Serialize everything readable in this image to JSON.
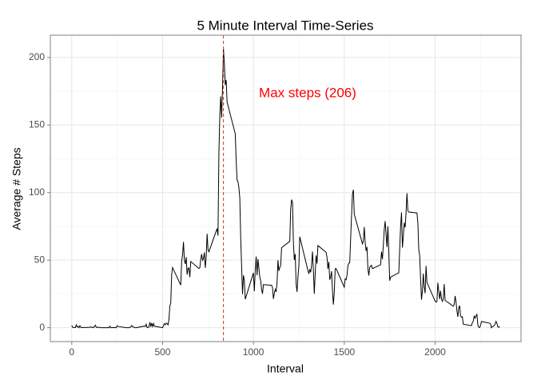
{
  "chart_data": {
    "type": "line",
    "title": "5 Minute Interval Time-Series",
    "xlabel": "Interval",
    "ylabel": "Average # Steps",
    "annotation": "Max steps (206)",
    "annotation_color": "#ff0000",
    "vline_x": 835,
    "vline_color": "#c0392b",
    "grid": true,
    "color": "#000000",
    "xlim": [
      -117.75,
      2472.75
    ],
    "ylim": [
      -10.3,
      216.5
    ],
    "xticks": [
      0,
      500,
      1000,
      1500,
      2000
    ],
    "yticks": [
      0,
      50,
      100,
      150,
      200
    ],
    "x_minor_ticks": [
      250,
      750,
      1250,
      1750,
      2250
    ],
    "y_minor_ticks": [
      25,
      75,
      125,
      175
    ],
    "x": [
      0,
      5,
      10,
      15,
      20,
      25,
      30,
      35,
      40,
      45,
      50,
      55,
      100,
      105,
      110,
      115,
      120,
      125,
      130,
      135,
      140,
      145,
      150,
      155,
      200,
      205,
      210,
      215,
      220,
      225,
      230,
      235,
      240,
      245,
      250,
      255,
      300,
      305,
      310,
      315,
      320,
      325,
      330,
      335,
      340,
      345,
      350,
      355,
      400,
      405,
      410,
      415,
      420,
      425,
      430,
      435,
      440,
      445,
      450,
      455,
      500,
      505,
      510,
      515,
      520,
      525,
      530,
      535,
      540,
      545,
      550,
      555,
      600,
      605,
      610,
      615,
      620,
      625,
      630,
      635,
      640,
      645,
      650,
      655,
      700,
      705,
      710,
      715,
      720,
      725,
      730,
      735,
      740,
      745,
      750,
      755,
      800,
      805,
      810,
      815,
      820,
      825,
      830,
      835,
      840,
      845,
      850,
      855,
      900,
      905,
      910,
      915,
      920,
      925,
      930,
      935,
      940,
      945,
      950,
      955,
      1000,
      1005,
      1010,
      1015,
      1020,
      1025,
      1030,
      1035,
      1040,
      1045,
      1050,
      1055,
      1100,
      1105,
      1110,
      1115,
      1120,
      1125,
      1130,
      1135,
      1140,
      1145,
      1150,
      1155,
      1200,
      1205,
      1210,
      1215,
      1220,
      1225,
      1230,
      1235,
      1240,
      1245,
      1250,
      1255,
      1300,
      1305,
      1310,
      1315,
      1320,
      1325,
      1330,
      1335,
      1340,
      1345,
      1350,
      1355,
      1400,
      1405,
      1410,
      1415,
      1420,
      1425,
      1430,
      1435,
      1440,
      1445,
      1450,
      1455,
      1500,
      1505,
      1510,
      1515,
      1520,
      1525,
      1530,
      1535,
      1540,
      1545,
      1550,
      1555,
      1600,
      1605,
      1610,
      1615,
      1620,
      1625,
      1630,
      1635,
      1640,
      1645,
      1650,
      1655,
      1700,
      1705,
      1710,
      1715,
      1720,
      1725,
      1730,
      1735,
      1740,
      1745,
      1750,
      1755,
      1800,
      1805,
      1810,
      1815,
      1820,
      1825,
      1830,
      1835,
      1840,
      1845,
      1850,
      1855,
      1900,
      1905,
      1910,
      1915,
      1920,
      1925,
      1930,
      1935,
      1940,
      1945,
      1950,
      1955,
      2000,
      2005,
      2010,
      2015,
      2020,
      2025,
      2030,
      2035,
      2040,
      2045,
      2050,
      2055,
      2100,
      2105,
      2110,
      2115,
      2120,
      2125,
      2130,
      2135,
      2140,
      2145,
      2150,
      2155,
      2200,
      2205,
      2210,
      2215,
      2220,
      2225,
      2230,
      2235,
      2240,
      2245,
      2250,
      2255,
      2300,
      2305,
      2310,
      2315,
      2320,
      2325,
      2330,
      2335,
      2340,
      2345,
      2350,
      2355
    ],
    "values": [
      1.7,
      0.3,
      0.1,
      0.2,
      0.1,
      2.1,
      0.5,
      0.9,
      0,
      1.5,
      0.3,
      0.1,
      0.3,
      0.7,
      0.2,
      0.3,
      0,
      1.1,
      1.8,
      0.2,
      0.2,
      0.4,
      0.3,
      0,
      0,
      0,
      1.1,
      0,
      0,
      0.1,
      0,
      0.2,
      0,
      0,
      1.5,
      0.9,
      0,
      0,
      0,
      0,
      0.2,
      0.6,
      1.6,
      0.6,
      0.5,
      0.1,
      0,
      0,
      1.2,
      0.9,
      2.6,
      0,
      0.3,
      0.4,
      4.1,
      0.7,
      3.5,
      0.8,
      3.1,
      1.1,
      0,
      1.6,
      3,
      2.2,
      3.3,
      3,
      2.1,
      6.1,
      16,
      18.3,
      39.5,
      44.5,
      31.5,
      49.3,
      53.8,
      63.5,
      50,
      47.1,
      52.2,
      39.3,
      44,
      44.2,
      37.4,
      49,
      43.8,
      44.4,
      50.5,
      54.5,
      49.9,
      51,
      55.7,
      44.3,
      52.3,
      69.5,
      57.8,
      56.2,
      73.4,
      68.2,
      129.4,
      157.5,
      171.2,
      155.4,
      177.3,
      206.2,
      195.9,
      179.6,
      183.4,
      167,
      143.5,
      124,
      109.1,
      108.1,
      103.7,
      96,
      66.2,
      45.2,
      24.8,
      38.8,
      35,
      21.1,
      40.6,
      27,
      42.4,
      52.7,
      38.9,
      50.8,
      44.3,
      37.4,
      34.7,
      28.3,
      25.1,
      31.9,
      31.4,
      29.7,
      21.3,
      25.5,
      28.4,
      26.5,
      33.3,
      49.98,
      42,
      44.6,
      46,
      59.2,
      63.9,
      87.7,
      94.8,
      92.8,
      63.4,
      50.2,
      54.5,
      32.4,
      26.5,
      37.7,
      45.1,
      67.3,
      42.3,
      39.9,
      43.3,
      40.98,
      46.2,
      56.4,
      42.8,
      25.1,
      40,
      53.5,
      47.4,
      60.8,
      55.8,
      51.95,
      43.6,
      48.7,
      35.5,
      37.5,
      41.8,
      27.5,
      17.1,
      26.1,
      43.6,
      43.8,
      30,
      36.1,
      35.5,
      38.8,
      45.96,
      47.8,
      48.1,
      65.3,
      82.9,
      98.7,
      102.1,
      83.96,
      62.1,
      64.1,
      74.5,
      63.2,
      56.9,
      59.8,
      43.9,
      38.6,
      44.7,
      45.5,
      46.2,
      43.7,
      46.6,
      56.3,
      50.7,
      61.2,
      72.7,
      78.9,
      68.9,
      59.7,
      75.1,
      56.5,
      34.8,
      37.5,
      40.7,
      58,
      74.7,
      85.3,
      59.3,
      67.8,
      77.7,
      74.2,
      85.3,
      99.5,
      86.6,
      85.6,
      84.9,
      77.8,
      58,
      53.4,
      36.3,
      20.7,
      27.4,
      40,
      30.2,
      25.5,
      45.7,
      33.5,
      19.6,
      19,
      19.3,
      33.3,
      26.8,
      21.2,
      27.3,
      21.3,
      19.5,
      21.3,
      32.3,
      20.2,
      15.9,
      17.2,
      23.5,
      19.2,
      12.5,
      8,
      14.7,
      16.3,
      8.7,
      7.8,
      8.1,
      2.6,
      1.5,
      3.7,
      4.8,
      8.5,
      7.1,
      8.7,
      9.8,
      2.2,
      0.3,
      0.1,
      1.6,
      4.6,
      3.3,
      2.8,
      0,
      0.8,
      1,
      1.6,
      2.6,
      4.7,
      3.3,
      0.6,
      0.2,
      1.1
    ]
  }
}
